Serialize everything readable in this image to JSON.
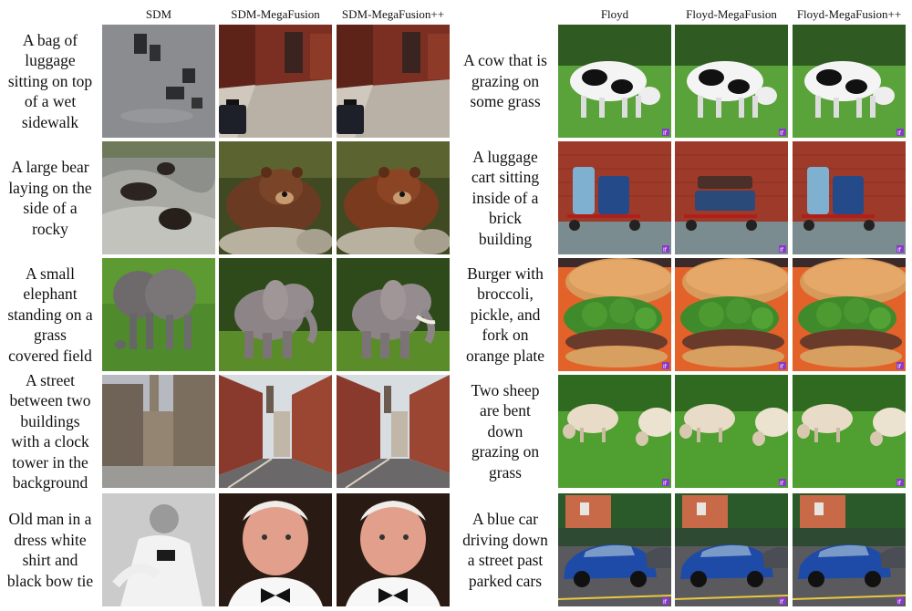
{
  "headers": [
    "SDM",
    "SDM-MegaFusion",
    "SDM-MegaFusion++",
    "Floyd",
    "Floyd-MegaFusion",
    "Floyd-MegaFusion++"
  ],
  "left_prompts": [
    "A bag of luggage sitting on top of a wet sidewalk",
    "A large bear laying on the side of a rocky",
    "A small elephant standing on a grass covered field",
    "A street between two buildings with a clock tower in the background",
    "Old man in a dress white shirt and black bow tie"
  ],
  "right_prompts": [
    "A cow that is grazing on some grass",
    "A luggage cart sitting inside of a brick building",
    "Burger with broccoli, pickle, and fork on orange plate",
    "Two sheep are bent down grazing on grass",
    "A blue car driving down a street past parked cars"
  ],
  "left_prompt_lines": [
    [
      "A bag of",
      "luggage",
      "sitting on top",
      "of a wet",
      "sidewalk"
    ],
    [
      "A large bear",
      "laying on the",
      "side of a",
      "rocky"
    ],
    [
      "A small",
      "elephant",
      "standing on a",
      "grass",
      "covered field"
    ],
    [
      "A street",
      "between two",
      "buildings",
      "with a clock",
      "tower in the",
      "background"
    ],
    [
      "Old man in a",
      "dress white",
      "shirt and",
      "black bow tie"
    ]
  ],
  "right_prompt_lines": [
    [
      "A cow that is",
      "grazing on",
      "some grass"
    ],
    [
      "A luggage",
      "cart sitting",
      "inside of a",
      "brick",
      "building"
    ],
    [
      "Burger with",
      "broccoli,",
      "pickle, and",
      "fork on",
      "orange plate"
    ],
    [
      "Two sheep",
      "are bent",
      "down",
      "grazing on",
      "grass"
    ],
    [
      "A blue car",
      "driving down",
      "a street past",
      "parked cars"
    ]
  ],
  "image_subjects": [
    [
      "luggage-wet-sidewalk",
      "cow-grazing"
    ],
    [
      "bear-on-rocks",
      "luggage-cart-brick"
    ],
    [
      "elephant-grass-field",
      "burger-broccoli"
    ],
    [
      "street-clock-tower",
      "sheep-grazing"
    ],
    [
      "old-man-bow-tie",
      "blue-car-street"
    ]
  ],
  "colors": {
    "background": "#ffffff",
    "text": "#111111"
  }
}
